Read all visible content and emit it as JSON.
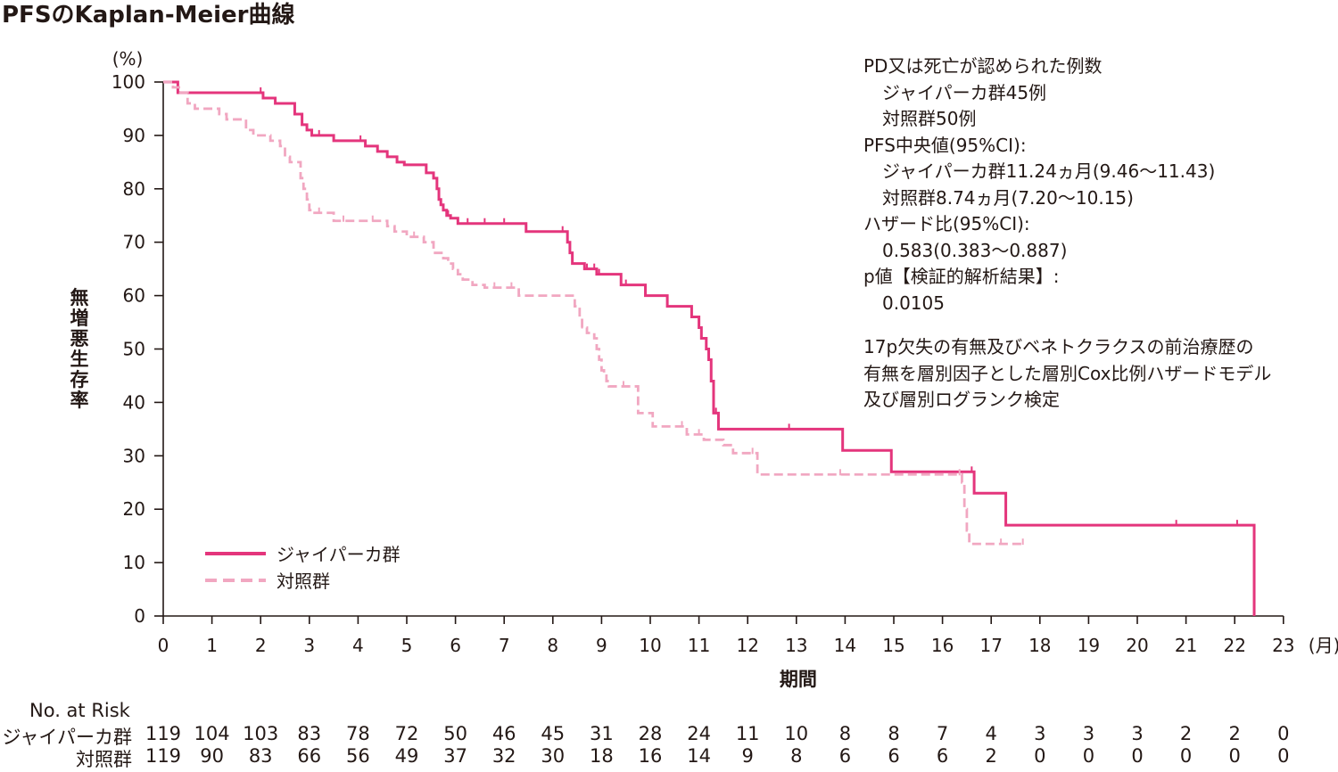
{
  "chart_data": {
    "type": "line",
    "title": "PFSのKaplan-Meier曲線",
    "xlabel": "期間",
    "x_unit": "(月)",
    "ylabel": "無増悪生存率",
    "y_unit": "(%)",
    "xlim": [
      0,
      23
    ],
    "ylim": [
      0,
      100
    ],
    "x_ticks": [
      0,
      1,
      2,
      3,
      4,
      5,
      6,
      7,
      8,
      9,
      10,
      11,
      12,
      13,
      14,
      15,
      16,
      17,
      18,
      19,
      20,
      21,
      22,
      23
    ],
    "y_ticks": [
      0,
      10,
      20,
      30,
      40,
      50,
      60,
      70,
      80,
      90,
      100
    ],
    "grid": false,
    "legend_position": "bottom-left",
    "series": [
      {
        "name": "ジャイパーカ群",
        "color": "#e4357c",
        "style": "solid",
        "steps": [
          [
            0,
            100
          ],
          [
            0.3,
            98
          ],
          [
            2.05,
            97
          ],
          [
            2.3,
            96
          ],
          [
            2.7,
            94
          ],
          [
            2.85,
            92
          ],
          [
            2.95,
            91
          ],
          [
            3.05,
            90
          ],
          [
            3.5,
            89
          ],
          [
            4.15,
            88
          ],
          [
            4.4,
            87
          ],
          [
            4.6,
            86
          ],
          [
            4.8,
            85
          ],
          [
            4.95,
            84.5
          ],
          [
            5.4,
            83
          ],
          [
            5.55,
            82
          ],
          [
            5.62,
            80
          ],
          [
            5.66,
            78
          ],
          [
            5.7,
            77
          ],
          [
            5.75,
            76
          ],
          [
            5.82,
            75
          ],
          [
            5.9,
            74.5
          ],
          [
            6.05,
            73.5
          ],
          [
            7.45,
            72
          ],
          [
            8.3,
            70
          ],
          [
            8.35,
            68
          ],
          [
            8.4,
            66
          ],
          [
            8.65,
            65
          ],
          [
            8.9,
            64
          ],
          [
            9.4,
            62
          ],
          [
            9.9,
            60
          ],
          [
            10.35,
            58
          ],
          [
            10.85,
            56
          ],
          [
            11.0,
            54
          ],
          [
            11.05,
            52
          ],
          [
            11.15,
            50
          ],
          [
            11.2,
            48
          ],
          [
            11.25,
            44
          ],
          [
            11.3,
            38
          ],
          [
            11.4,
            35
          ],
          [
            13.95,
            31
          ],
          [
            14.95,
            27
          ],
          [
            16.65,
            23
          ],
          [
            17.3,
            17
          ],
          [
            22.4,
            0
          ]
        ],
        "censor_x": [
          2.0,
          3.2,
          4.05,
          5.85,
          6.25,
          6.6,
          7.0,
          8.2,
          8.7,
          8.85,
          8.95,
          9.5,
          11.35,
          12.85,
          13.95,
          16.6,
          20.8,
          22.05
        ]
      },
      {
        "name": "対照群",
        "color": "#f1a7c1",
        "style": "dashed",
        "steps": [
          [
            0,
            100
          ],
          [
            0.2,
            99
          ],
          [
            0.35,
            98
          ],
          [
            0.5,
            96
          ],
          [
            0.65,
            95
          ],
          [
            1.15,
            94
          ],
          [
            1.3,
            93
          ],
          [
            1.7,
            91
          ],
          [
            1.85,
            90
          ],
          [
            2.2,
            89
          ],
          [
            2.4,
            88
          ],
          [
            2.5,
            86
          ],
          [
            2.6,
            85
          ],
          [
            2.82,
            82
          ],
          [
            2.88,
            80
          ],
          [
            2.95,
            78
          ],
          [
            3.0,
            76
          ],
          [
            3.05,
            75.5
          ],
          [
            3.5,
            74
          ],
          [
            4.6,
            73
          ],
          [
            4.75,
            72
          ],
          [
            5.0,
            71
          ],
          [
            5.35,
            70
          ],
          [
            5.55,
            68
          ],
          [
            5.75,
            67
          ],
          [
            5.85,
            66
          ],
          [
            5.95,
            65
          ],
          [
            6.05,
            64
          ],
          [
            6.15,
            63
          ],
          [
            6.35,
            62
          ],
          [
            6.6,
            61.5
          ],
          [
            7.3,
            60
          ],
          [
            8.45,
            58
          ],
          [
            8.55,
            56
          ],
          [
            8.6,
            54
          ],
          [
            8.7,
            53
          ],
          [
            8.85,
            52
          ],
          [
            8.9,
            50
          ],
          [
            8.95,
            48
          ],
          [
            9.0,
            46
          ],
          [
            9.05,
            45
          ],
          [
            9.1,
            44
          ],
          [
            9.15,
            43
          ],
          [
            9.75,
            38
          ],
          [
            10.05,
            35.5
          ],
          [
            10.75,
            34
          ],
          [
            11.1,
            33
          ],
          [
            11.5,
            32
          ],
          [
            11.7,
            30.5
          ],
          [
            12.2,
            26.5
          ],
          [
            16.4,
            25
          ],
          [
            16.45,
            20
          ],
          [
            16.5,
            16
          ],
          [
            16.55,
            13.5
          ]
        ],
        "end_x": 17.7,
        "censor_x": [
          3.2,
          3.7,
          4.3,
          5.15,
          6.8,
          7.15,
          8.6,
          9.45,
          10.65,
          11.0,
          12.1,
          13.9,
          16.35,
          17.2,
          17.65
        ]
      }
    ],
    "annotation_lines": [
      "PD又は死亡が認められた例数",
      "ジャイパーカ群45例",
      "対照群50例",
      "PFS中央値(95%CI):",
      "ジャイパーカ群11.24ヵ月(9.46〜11.43)",
      "対照群8.74ヵ月(7.20〜10.15)",
      "ハザード比(95%CI):",
      "0.583(0.383〜0.887)",
      "p値【検証的解析結果】:",
      "0.0105",
      "",
      "17p欠失の有無及びベネトクラクスの前治療歴の",
      "有無を層別因子とした層別Cox比例ハザードモデル",
      "及び層別ログランク検定"
    ],
    "risk_table": {
      "title": "No. at Risk",
      "rows": [
        {
          "label": "ジャイパーカ群",
          "values": [
            119,
            104,
            103,
            83,
            78,
            72,
            50,
            46,
            45,
            31,
            28,
            24,
            11,
            10,
            8,
            8,
            7,
            4,
            3,
            3,
            3,
            2,
            2,
            0
          ]
        },
        {
          "label": "対照群",
          "values": [
            119,
            90,
            83,
            66,
            56,
            49,
            37,
            32,
            30,
            18,
            16,
            14,
            9,
            8,
            6,
            6,
            6,
            2,
            0,
            0,
            0,
            0,
            0,
            0
          ]
        }
      ]
    }
  }
}
